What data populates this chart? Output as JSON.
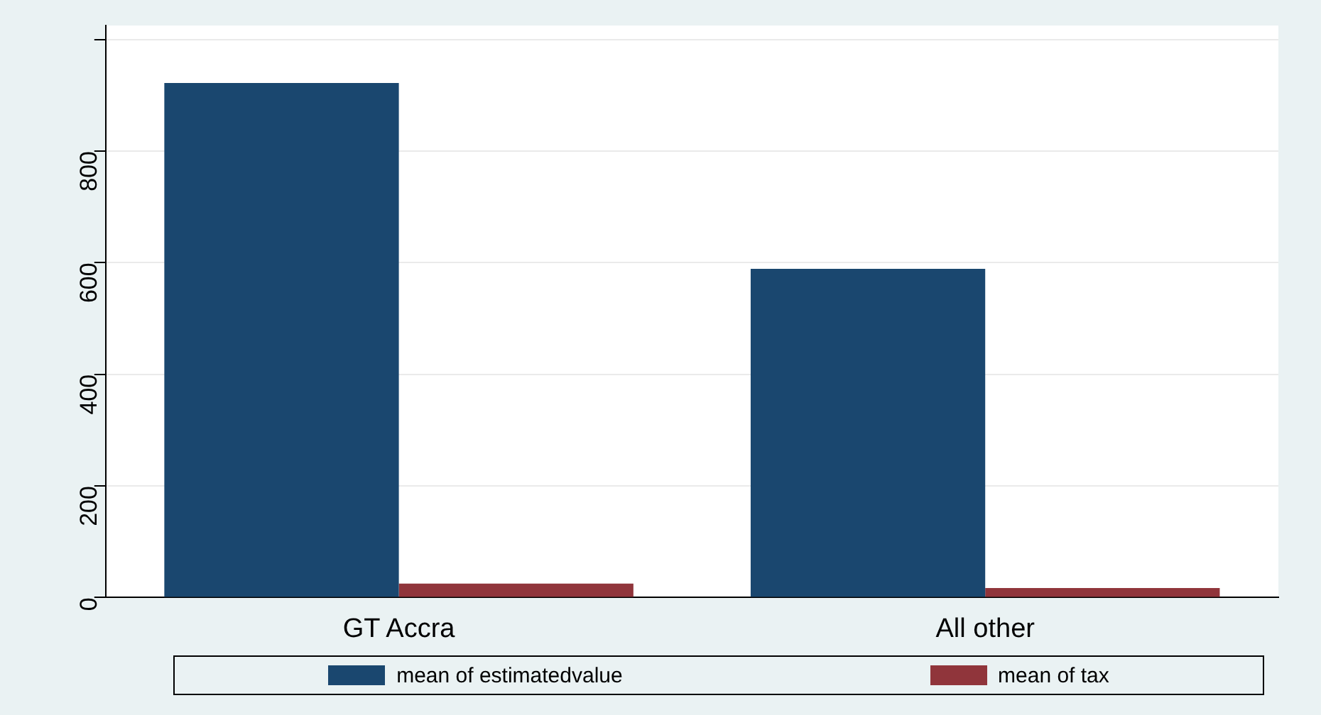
{
  "chart_data": {
    "type": "bar",
    "categories": [
      "GT Accra",
      "All other"
    ],
    "series": [
      {
        "name": "mean of estimatedvalue",
        "color": "#1a476f",
        "values": [
          922,
          589
        ]
      },
      {
        "name": "mean of tax",
        "color": "#90353b",
        "values": [
          25,
          17
        ]
      }
    ],
    "ylim": [
      0,
      1025
    ],
    "yticks": [
      0,
      200,
      400,
      600,
      800,
      {
        "value": 1000,
        "label": null
      }
    ],
    "grid": "y",
    "legend": "bottom"
  }
}
